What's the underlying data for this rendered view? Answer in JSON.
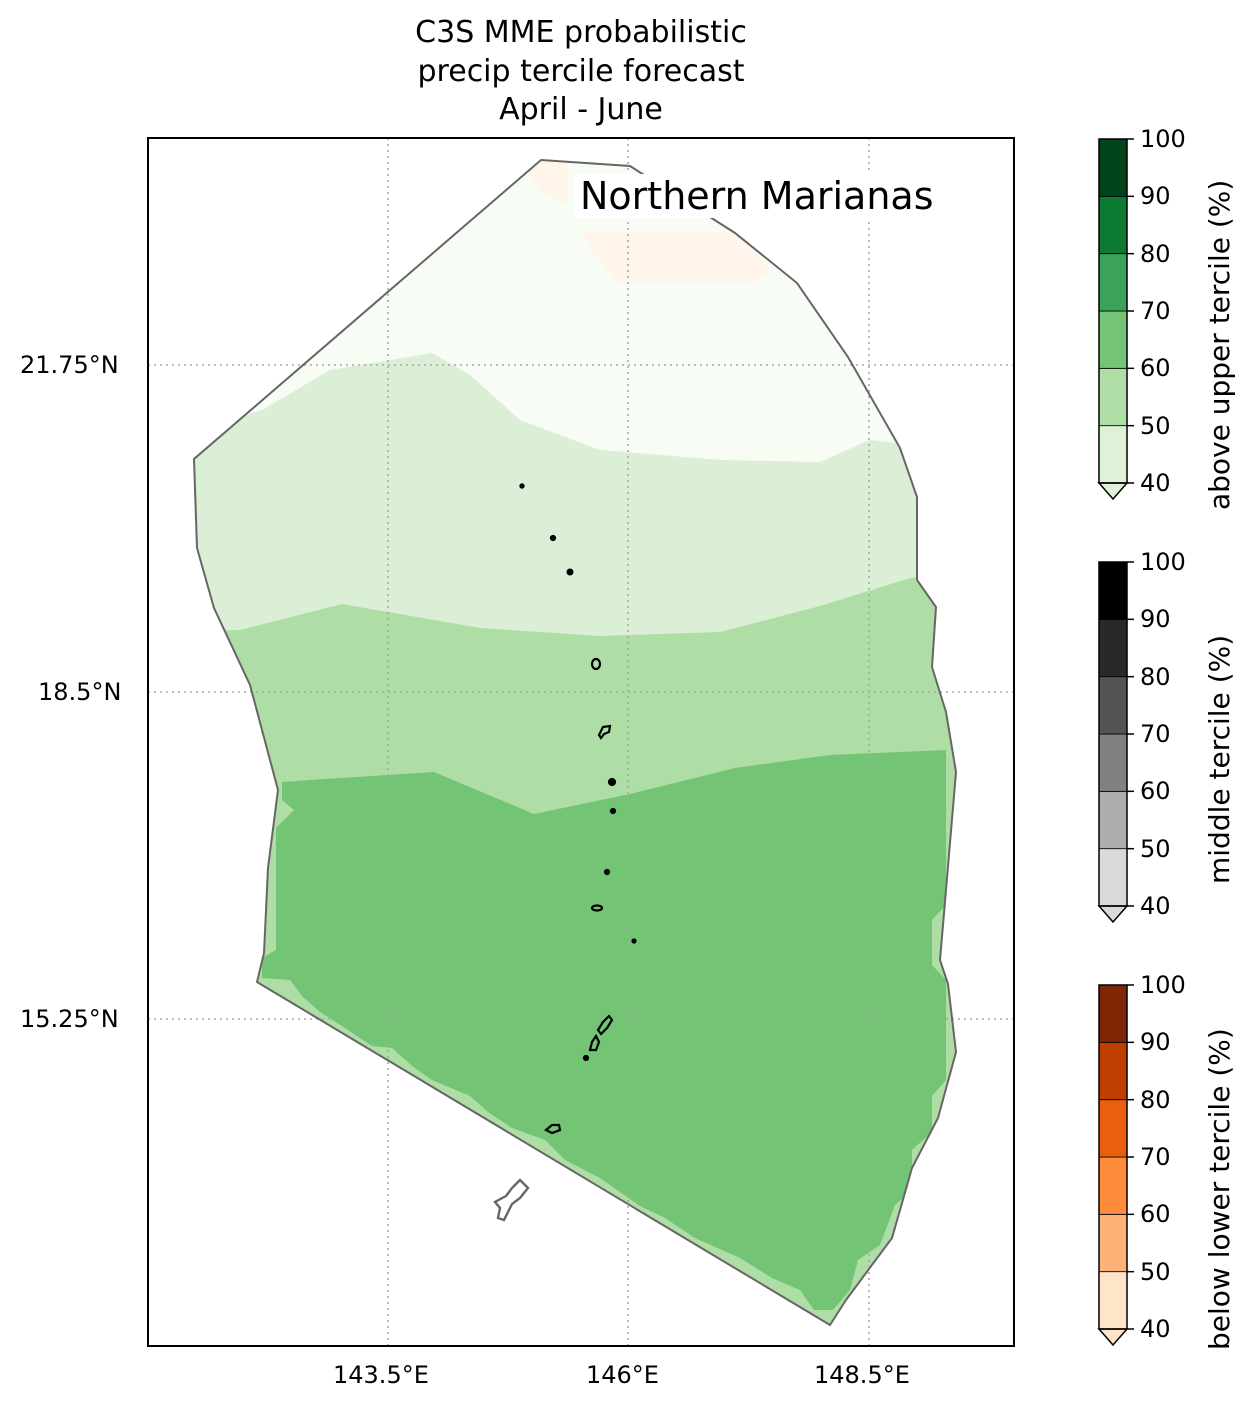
{
  "title": {
    "line1": "C3S MME probabilistic",
    "line2": "precip tercile forecast",
    "line3": "April - June"
  },
  "region_label": "Northern Marianas",
  "axes": {
    "y_ticks": [
      "21.75°N",
      "18.5°N",
      "15.25°N"
    ],
    "x_ticks": [
      "143.5°E",
      "146°E",
      "148.5°E"
    ],
    "grid": "dotted"
  },
  "colorbars": [
    {
      "label": "above upper tercile (%)",
      "ticks": [
        "40",
        "50",
        "60",
        "70",
        "80",
        "90",
        "100"
      ],
      "colors": [
        "#def2d8",
        "#aedea5",
        "#74c476",
        "#3ba25a",
        "#0c7a32",
        "#00441b"
      ],
      "extend": "min"
    },
    {
      "label": "middle tercile (%)",
      "ticks": [
        "40",
        "50",
        "60",
        "70",
        "80",
        "90",
        "100"
      ],
      "colors": [
        "#dadada",
        "#adadad",
        "#818181",
        "#545454",
        "#292929",
        "#000000"
      ],
      "extend": "min"
    },
    {
      "label": "below lower tercile (%)",
      "ticks": [
        "40",
        "50",
        "60",
        "70",
        "80",
        "90",
        "100"
      ],
      "colors": [
        "#fee4c9",
        "#fdb277",
        "#fd8c3b",
        "#ea5f0e",
        "#bf3e02",
        "#7f2604"
      ],
      "extend": "min"
    }
  ],
  "map": {
    "forecast_fill_colors": {
      "near_white_green": "#f7fcf5",
      "above_40_50": "#daefd6",
      "above_50_60": "#aede a5",
      "above_60_70": "#74c476",
      "below_pale": "#fff5eb"
    },
    "boundary_color": "#666666",
    "island_color": "#000000",
    "guam_color": "#555555"
  }
}
